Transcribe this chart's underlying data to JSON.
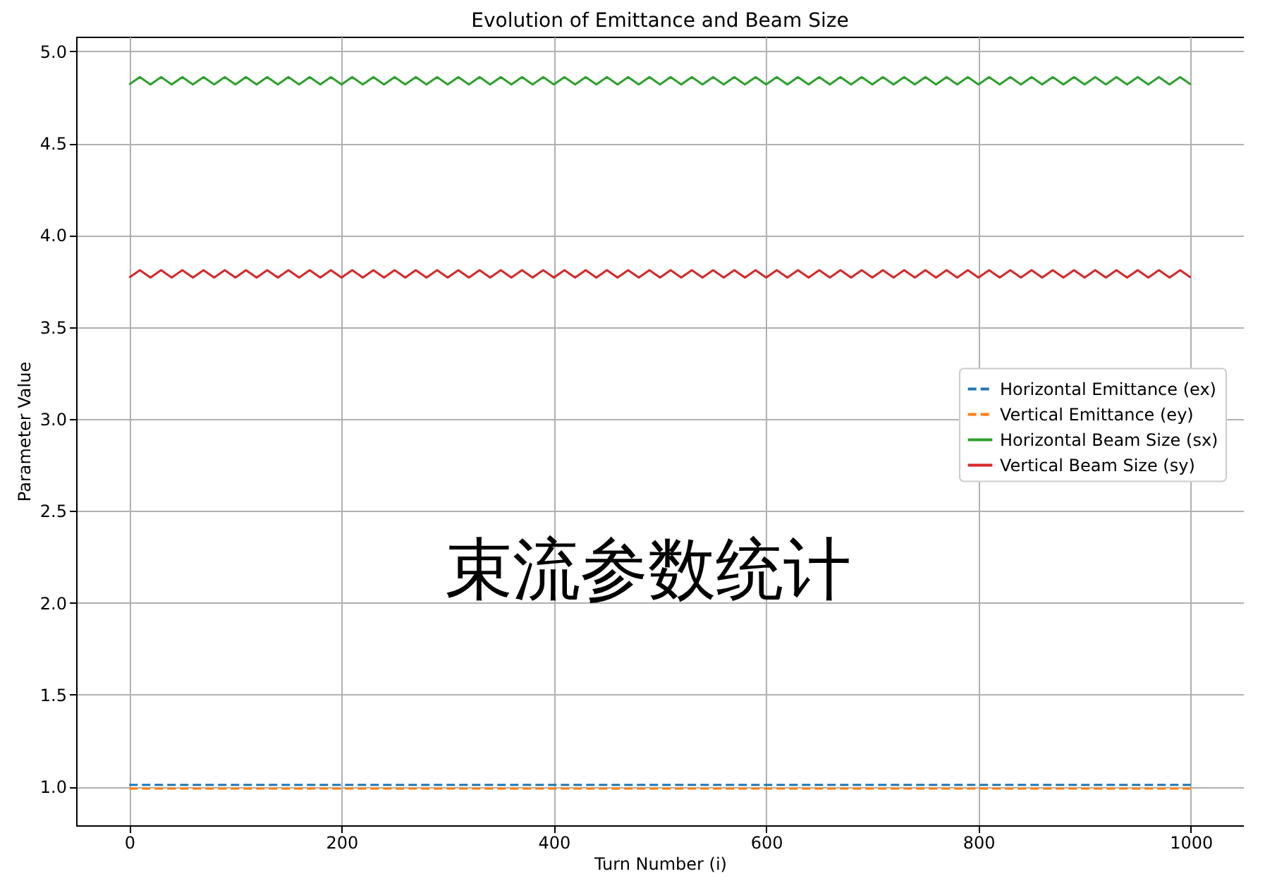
{
  "chart_data": {
    "type": "line",
    "title": "Evolution of Emittance and Beam Size",
    "xlabel": "Turn Number (i)",
    "ylabel": "Parameter Value",
    "annotations": [
      "束流参数统计"
    ],
    "xlim": [
      -50,
      1050
    ],
    "xticks": [
      0,
      200,
      400,
      600,
      800,
      1000
    ],
    "ylim": [
      0.79,
      5.08
    ],
    "yticks": [
      {
        "value": 1,
        "label": "1.0"
      },
      {
        "value": 1.5,
        "label": "1.5"
      },
      {
        "value": 2,
        "label": "2.0"
      },
      {
        "value": 2.5,
        "label": "2.5"
      },
      {
        "value": 3,
        "label": "3.0"
      },
      {
        "value": 3.5,
        "label": "3.5"
      },
      {
        "value": 4,
        "label": "4.0"
      },
      {
        "value": 4.5,
        "label": "4.5"
      },
      {
        "value": 5,
        "label": "5.0"
      }
    ],
    "grid": true,
    "legend": "right",
    "x": [
      0,
      10,
      20,
      30,
      40,
      50,
      60,
      70,
      80,
      90,
      100,
      110,
      120,
      130,
      140,
      150,
      160,
      170,
      180,
      190,
      200,
      210,
      220,
      230,
      240,
      250,
      260,
      270,
      280,
      290,
      300,
      310,
      320,
      330,
      340,
      350,
      360,
      370,
      380,
      390,
      400,
      410,
      420,
      430,
      440,
      450,
      460,
      470,
      480,
      490,
      500,
      510,
      520,
      530,
      540,
      550,
      560,
      570,
      580,
      590,
      600,
      610,
      620,
      630,
      640,
      650,
      660,
      670,
      680,
      690,
      700,
      710,
      720,
      730,
      740,
      750,
      760,
      770,
      780,
      790,
      800,
      810,
      820,
      830,
      840,
      850,
      860,
      870,
      880,
      890,
      900,
      910,
      920,
      930,
      940,
      950,
      960,
      970,
      980,
      990,
      1000
    ],
    "series": [
      {
        "name": "Horizontal Emittance (ex)",
        "color": "#1f77b4",
        "line_style": "dashed",
        "values": [
          1.01,
          1.01,
          1.01,
          1.01,
          1.01,
          1.01,
          1.01,
          1.01,
          1.01,
          1.01,
          1.01,
          1.01,
          1.01,
          1.01,
          1.01,
          1.01,
          1.01,
          1.01,
          1.01,
          1.01,
          1.01,
          1.01,
          1.01,
          1.01,
          1.01,
          1.01,
          1.01,
          1.01,
          1.01,
          1.01,
          1.01,
          1.01,
          1.01,
          1.01,
          1.01,
          1.01,
          1.01,
          1.01,
          1.01,
          1.01,
          1.01,
          1.01,
          1.01,
          1.01,
          1.01,
          1.01,
          1.01,
          1.01,
          1.01,
          1.01,
          1.01,
          1.01,
          1.01,
          1.01,
          1.01,
          1.01,
          1.01,
          1.01,
          1.01,
          1.01,
          1.01,
          1.01,
          1.01,
          1.01,
          1.01,
          1.01,
          1.01,
          1.01,
          1.01,
          1.01,
          1.01,
          1.01,
          1.01,
          1.01,
          1.01,
          1.01,
          1.01,
          1.01,
          1.01,
          1.01,
          1.01,
          1.01,
          1.01,
          1.01,
          1.01,
          1.01,
          1.01,
          1.01,
          1.01,
          1.01,
          1.01,
          1.01,
          1.01,
          1.01,
          1.01,
          1.01,
          1.01,
          1.01,
          1.01,
          1.01,
          1.01
        ]
      },
      {
        "name": "Vertical Emittance (ey)",
        "color": "#ff7f0e",
        "line_style": "dashed",
        "values": [
          0.99,
          0.99,
          0.99,
          0.99,
          0.99,
          0.99,
          0.99,
          0.99,
          0.99,
          0.99,
          0.99,
          0.99,
          0.99,
          0.99,
          0.99,
          0.99,
          0.99,
          0.99,
          0.99,
          0.99,
          0.99,
          0.99,
          0.99,
          0.99,
          0.99,
          0.99,
          0.99,
          0.99,
          0.99,
          0.99,
          0.99,
          0.99,
          0.99,
          0.99,
          0.99,
          0.99,
          0.99,
          0.99,
          0.99,
          0.99,
          0.99,
          0.99,
          0.99,
          0.99,
          0.99,
          0.99,
          0.99,
          0.99,
          0.99,
          0.99,
          0.99,
          0.99,
          0.99,
          0.99,
          0.99,
          0.99,
          0.99,
          0.99,
          0.99,
          0.99,
          0.99,
          0.99,
          0.99,
          0.99,
          0.99,
          0.99,
          0.99,
          0.99,
          0.99,
          0.99,
          0.99,
          0.99,
          0.99,
          0.99,
          0.99,
          0.99,
          0.99,
          0.99,
          0.99,
          0.99,
          0.99,
          0.99,
          0.99,
          0.99,
          0.99,
          0.99,
          0.99,
          0.99,
          0.99,
          0.99,
          0.99,
          0.99,
          0.99,
          0.99,
          0.99,
          0.99,
          0.99,
          0.99,
          0.99,
          0.99,
          0.99
        ]
      },
      {
        "name": "Horizontal Beam Size (sx)",
        "color": "#2ca02c",
        "line_style": "solid",
        "values": [
          4.82,
          4.86,
          4.82,
          4.86,
          4.82,
          4.86,
          4.82,
          4.86,
          4.82,
          4.86,
          4.82,
          4.86,
          4.82,
          4.86,
          4.82,
          4.86,
          4.82,
          4.86,
          4.82,
          4.86,
          4.82,
          4.86,
          4.82,
          4.86,
          4.82,
          4.86,
          4.82,
          4.86,
          4.82,
          4.86,
          4.82,
          4.86,
          4.82,
          4.86,
          4.82,
          4.86,
          4.82,
          4.86,
          4.82,
          4.86,
          4.82,
          4.86,
          4.82,
          4.86,
          4.82,
          4.86,
          4.82,
          4.86,
          4.82,
          4.86,
          4.82,
          4.86,
          4.82,
          4.86,
          4.82,
          4.86,
          4.82,
          4.86,
          4.82,
          4.86,
          4.82,
          4.86,
          4.82,
          4.86,
          4.82,
          4.86,
          4.82,
          4.86,
          4.82,
          4.86,
          4.82,
          4.86,
          4.82,
          4.86,
          4.82,
          4.86,
          4.82,
          4.86,
          4.82,
          4.86,
          4.82,
          4.86,
          4.82,
          4.86,
          4.82,
          4.86,
          4.82,
          4.86,
          4.82,
          4.86,
          4.82,
          4.86,
          4.82,
          4.86,
          4.82,
          4.86,
          4.82,
          4.86,
          4.82,
          4.86,
          4.82
        ]
      },
      {
        "name": "Vertical Beam Size (sy)",
        "color": "#d62728",
        "line_style": "solid",
        "values": [
          3.77,
          3.81,
          3.77,
          3.81,
          3.77,
          3.81,
          3.77,
          3.81,
          3.77,
          3.81,
          3.77,
          3.81,
          3.77,
          3.81,
          3.77,
          3.81,
          3.77,
          3.81,
          3.77,
          3.81,
          3.77,
          3.81,
          3.77,
          3.81,
          3.77,
          3.81,
          3.77,
          3.81,
          3.77,
          3.81,
          3.77,
          3.81,
          3.77,
          3.81,
          3.77,
          3.81,
          3.77,
          3.81,
          3.77,
          3.81,
          3.77,
          3.81,
          3.77,
          3.81,
          3.77,
          3.81,
          3.77,
          3.81,
          3.77,
          3.81,
          3.77,
          3.81,
          3.77,
          3.81,
          3.77,
          3.81,
          3.77,
          3.81,
          3.77,
          3.81,
          3.77,
          3.81,
          3.77,
          3.81,
          3.77,
          3.81,
          3.77,
          3.81,
          3.77,
          3.81,
          3.77,
          3.81,
          3.77,
          3.81,
          3.77,
          3.81,
          3.77,
          3.81,
          3.77,
          3.81,
          3.77,
          3.81,
          3.77,
          3.81,
          3.77,
          3.81,
          3.77,
          3.81,
          3.77,
          3.81,
          3.77,
          3.81,
          3.77,
          3.81,
          3.77,
          3.81,
          3.77,
          3.81,
          3.77,
          3.81,
          3.77
        ]
      }
    ]
  }
}
